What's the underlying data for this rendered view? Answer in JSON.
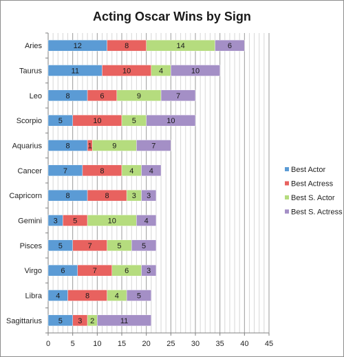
{
  "chart_data": {
    "type": "bar",
    "orientation": "horizontal",
    "stacked": true,
    "title": "Acting Oscar Wins by Sign",
    "categories": [
      "Aries",
      "Taurus",
      "Leo",
      "Scorpio",
      "Aquarius",
      "Cancer",
      "Capricorn",
      "Gemini",
      "Pisces",
      "Virgo",
      "Libra",
      "Sagittarius"
    ],
    "series": [
      {
        "name": "Best Actor",
        "color": "#5b9bd5",
        "values": [
          12,
          11,
          8,
          5,
          8,
          7,
          8,
          3,
          5,
          6,
          4,
          5
        ]
      },
      {
        "name": "Best Actress",
        "color": "#e8625f",
        "values": [
          8,
          10,
          6,
          10,
          1,
          8,
          8,
          5,
          7,
          7,
          8,
          3
        ]
      },
      {
        "name": "Best S. Actor",
        "color": "#b5dc7e",
        "values": [
          14,
          4,
          9,
          5,
          9,
          4,
          3,
          10,
          5,
          6,
          4,
          2
        ]
      },
      {
        "name": "Best S. Actress",
        "color": "#a48fc6",
        "values": [
          6,
          10,
          7,
          10,
          7,
          4,
          3,
          4,
          5,
          3,
          5,
          11
        ]
      }
    ],
    "xlim": [
      0,
      45
    ],
    "xticks": [
      0,
      5,
      10,
      15,
      20,
      25,
      30,
      35,
      40,
      45
    ],
    "grid": {
      "vertical": true,
      "minor_step": 1,
      "major_step": 5
    },
    "legend": "right"
  }
}
